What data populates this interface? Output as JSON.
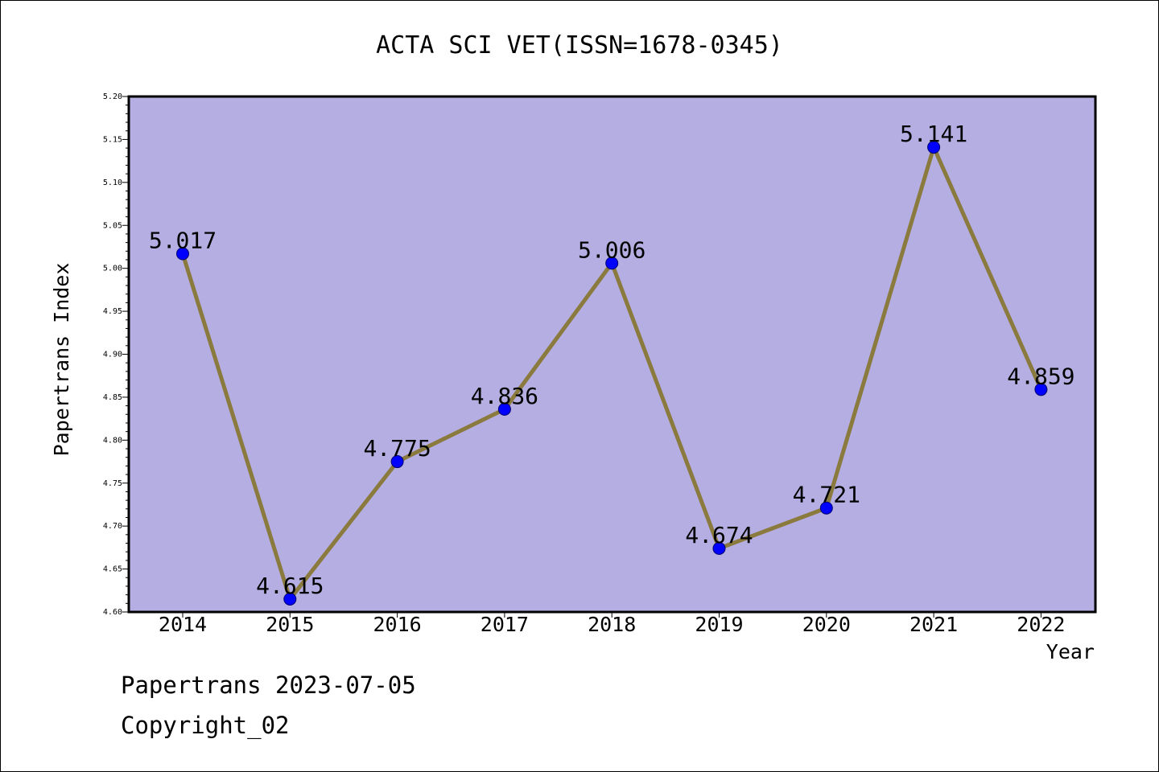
{
  "chart_data": {
    "type": "line",
    "title": "ACTA SCI VET(ISSN=1678-0345)",
    "xlabel": "Year",
    "ylabel": "Papertrans Index",
    "categories": [
      "2014",
      "2015",
      "2016",
      "2017",
      "2018",
      "2019",
      "2020",
      "2021",
      "2022"
    ],
    "series": [
      {
        "values": [
          5.017,
          4.615,
          4.775,
          4.836,
          5.006,
          4.674,
          4.721,
          5.141,
          4.859
        ]
      }
    ],
    "data_labels": [
      "5.017",
      "4.615",
      "4.775",
      "4.836",
      "5.006",
      "4.674",
      "4.721",
      "5.141",
      "4.859"
    ],
    "ylim": [
      4.6,
      5.2
    ],
    "yticks": [
      "4.60",
      "4.65",
      "4.70",
      "4.75",
      "4.80",
      "4.85",
      "4.90",
      "4.95",
      "5.00",
      "5.05",
      "5.10",
      "5.15",
      "5.20"
    ],
    "grid": false,
    "legend": "none",
    "colors": {
      "plot_background": "#b5aee2",
      "line": "#8b7a3e",
      "marker": "#0000ff"
    }
  },
  "footer": {
    "line1": "Papertrans 2023-07-05",
    "line2": "Copyright_02"
  }
}
